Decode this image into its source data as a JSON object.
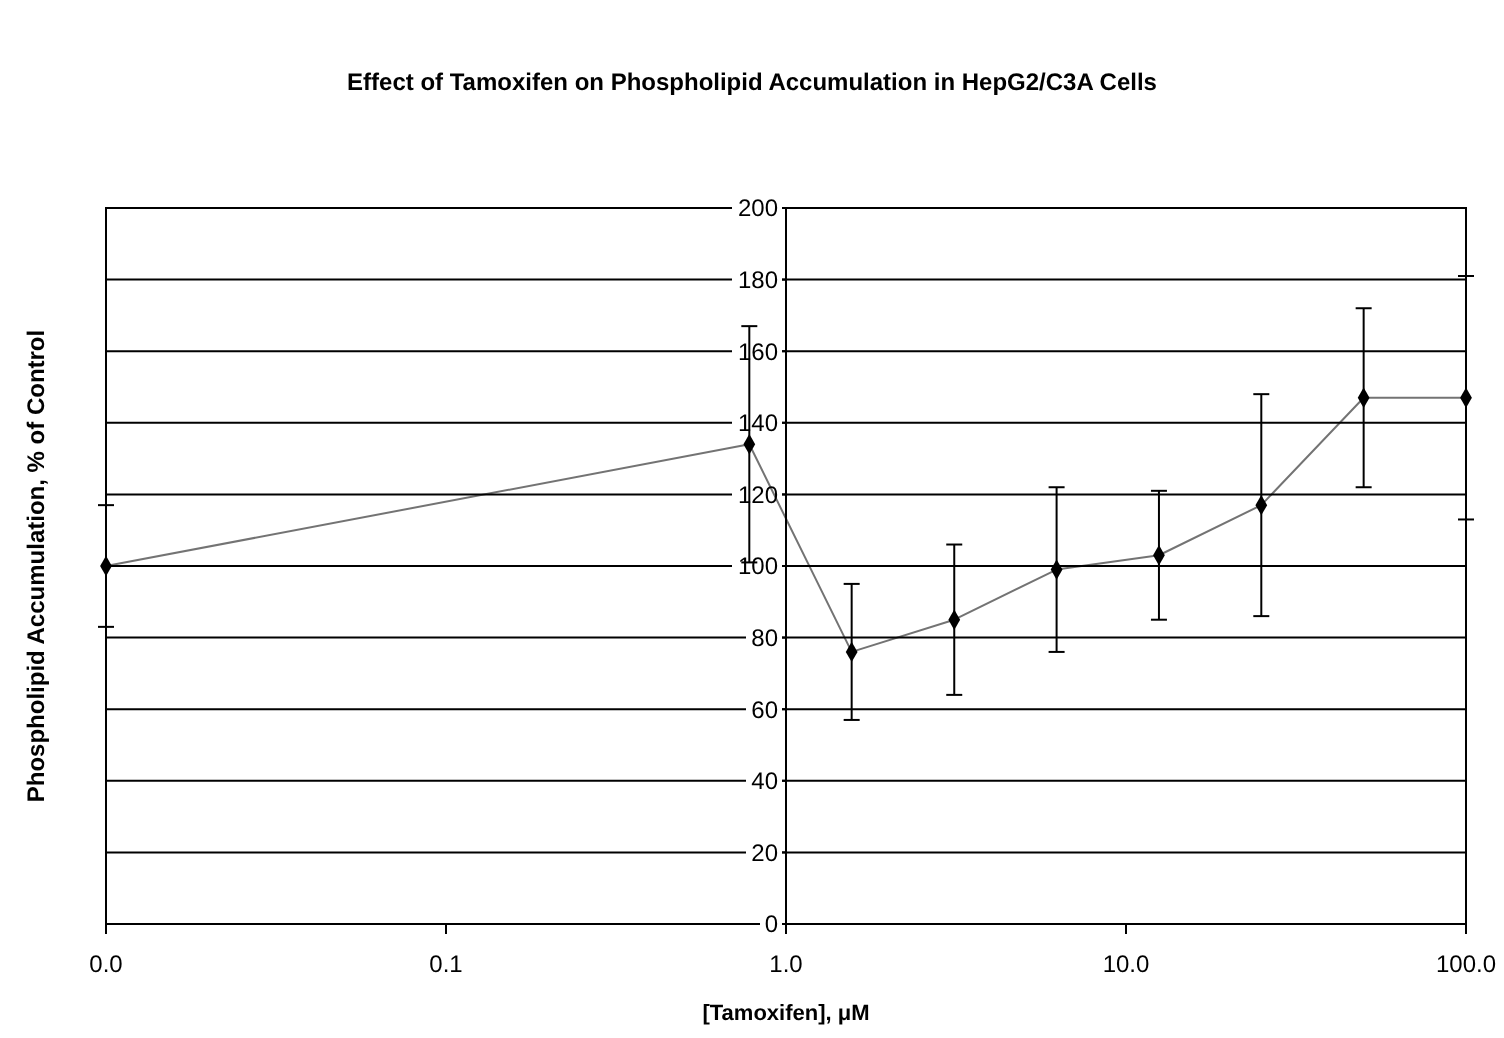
{
  "chart_data": {
    "type": "line",
    "title": "Effect of Tamoxifen on Phospholipid Accumulation in HepG2/C3A Cells",
    "xlabel": "[Tamoxifen],  μM",
    "ylabel": "Phospholipid Accumulation, % of Control",
    "x": [
      0.01,
      0.78,
      1.56,
      3.125,
      6.25,
      12.5,
      25,
      50,
      100
    ],
    "series": [
      {
        "color": "#000000",
        "values": [
          100,
          134,
          76,
          85,
          99,
          103,
          117,
          147,
          147
        ],
        "errors": [
          17,
          33,
          19,
          21,
          23,
          18,
          31,
          25,
          34
        ]
      }
    ],
    "log": "x",
    "xlim": [
      0.01,
      100
    ],
    "xticks": [
      {
        "value": 0.01,
        "label": "0.0"
      },
      0.1,
      {
        "value": 1,
        "label": "1.0"
      },
      {
        "value": 10,
        "label": "10.0"
      },
      {
        "value": 100,
        "label": "100.0"
      }
    ],
    "ylim": [
      0,
      200
    ],
    "yticks": [
      0,
      20,
      40,
      60,
      80,
      100,
      120,
      140,
      160,
      180,
      200
    ],
    "grid": "y",
    "marker": "diamond",
    "line_style": "solid"
  }
}
